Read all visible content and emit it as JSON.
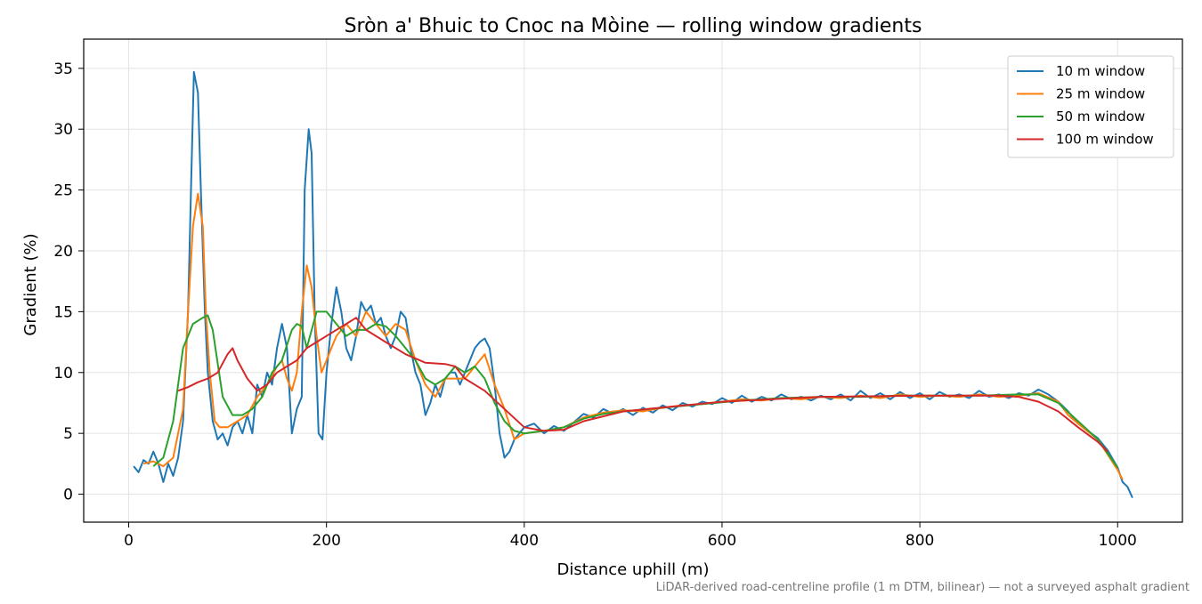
{
  "chart_data": {
    "type": "line",
    "title": "Sròn a' Bhuic to Cnoc na Mòine — rolling window gradients",
    "x_label": "Distance uphill (m)",
    "y_label": "Gradient (%)",
    "note": "LiDAR-derived road-centreline profile (1 m DTM, bilinear) — not a surveyed asphalt gradient",
    "xlim": [
      -45.5,
      1065.5
    ],
    "ylim": [
      -2.3,
      37.4
    ],
    "xticks": [
      0,
      200,
      400,
      600,
      800,
      1000
    ],
    "yticks": [
      0,
      5,
      10,
      15,
      20,
      25,
      30,
      35
    ],
    "grid": true,
    "legend": "upper right",
    "series": [
      {
        "name": "10 m window",
        "color": "#1f77b4",
        "x": [
          5,
          10,
          15,
          20,
          25,
          30,
          35,
          40,
          45,
          50,
          55,
          60,
          63,
          66,
          70,
          73,
          77,
          80,
          85,
          90,
          95,
          100,
          105,
          110,
          115,
          120,
          125,
          130,
          135,
          140,
          145,
          150,
          155,
          160,
          165,
          170,
          175,
          178,
          182,
          185,
          188,
          192,
          196,
          200,
          205,
          210,
          215,
          220,
          225,
          230,
          235,
          240,
          245,
          250,
          255,
          260,
          265,
          270,
          275,
          280,
          285,
          290,
          295,
          300,
          305,
          310,
          315,
          320,
          325,
          330,
          335,
          340,
          345,
          350,
          355,
          360,
          365,
          370,
          375,
          380,
          385,
          390,
          395,
          400,
          410,
          420,
          430,
          440,
          450,
          460,
          470,
          480,
          490,
          500,
          510,
          520,
          530,
          540,
          550,
          560,
          570,
          580,
          590,
          600,
          610,
          620,
          630,
          640,
          650,
          660,
          670,
          680,
          690,
          700,
          710,
          720,
          730,
          740,
          750,
          760,
          770,
          780,
          790,
          800,
          810,
          820,
          830,
          840,
          850,
          860,
          870,
          880,
          890,
          900,
          910,
          920,
          930,
          940,
          950,
          960,
          970,
          980,
          990,
          1000,
          1005,
          1010,
          1015
        ],
        "values": [
          2.3,
          1.8,
          2.8,
          2.5,
          3.5,
          2.5,
          1.0,
          2.5,
          1.5,
          3.0,
          6,
          15,
          25,
          34.7,
          33,
          25,
          15,
          10,
          6,
          4.5,
          5,
          4,
          5.5,
          6,
          5,
          6.5,
          5,
          9,
          8,
          10,
          9,
          12,
          14,
          12,
          5,
          7,
          8,
          25,
          30,
          28,
          15,
          5,
          4.5,
          10,
          14,
          17,
          15,
          12,
          11,
          13,
          15.8,
          15,
          15.5,
          14,
          14.5,
          13,
          12,
          13,
          15,
          14.5,
          12,
          10,
          9,
          6.5,
          7.5,
          9,
          8,
          9.5,
          10,
          10,
          9,
          10,
          11,
          12,
          12.5,
          12.8,
          12,
          9,
          5,
          3,
          3.5,
          4.5,
          5,
          5.5,
          5.8,
          5.0,
          5.6,
          5.2,
          5.9,
          6.6,
          6.3,
          7.0,
          6.6,
          7.0,
          6.5,
          7.1,
          6.7,
          7.3,
          6.9,
          7.5,
          7.2,
          7.6,
          7.4,
          7.9,
          7.5,
          8.1,
          7.6,
          8.0,
          7.7,
          8.2,
          7.8,
          8.0,
          7.7,
          8.1,
          7.8,
          8.2,
          7.7,
          8.5,
          7.9,
          8.3,
          7.8,
          8.4,
          7.9,
          8.3,
          7.8,
          8.4,
          8.0,
          8.2,
          7.9,
          8.5,
          8.0,
          8.2,
          7.9,
          8.3,
          8.1,
          8.6,
          8.2,
          7.6,
          6.8,
          5.8,
          5.2,
          4.6,
          3.6,
          2.2,
          1.0,
          0.6,
          -0.3
        ]
      },
      {
        "name": "25 m window",
        "color": "#ff7f0e",
        "x": [
          15,
          25,
          35,
          45,
          55,
          60,
          65,
          70,
          75,
          78,
          82,
          87,
          92,
          100,
          110,
          120,
          130,
          140,
          150,
          155,
          160,
          165,
          170,
          175,
          180,
          185,
          190,
          195,
          200,
          205,
          210,
          220,
          230,
          240,
          250,
          260,
          270,
          280,
          290,
          300,
          310,
          320,
          330,
          340,
          350,
          360,
          370,
          380,
          390,
          400,
          420,
          440,
          460,
          480,
          500,
          520,
          540,
          560,
          580,
          600,
          620,
          640,
          660,
          680,
          700,
          720,
          740,
          760,
          780,
          800,
          820,
          840,
          860,
          880,
          900,
          920,
          940,
          950,
          960,
          980,
          1000,
          1005
        ],
        "values": [
          2.5,
          2.7,
          2.3,
          3,
          7,
          15,
          22,
          24.7,
          22,
          15,
          10,
          6,
          5.5,
          5.5,
          6,
          6.5,
          8,
          9,
          10.5,
          11,
          9.5,
          8.5,
          10,
          15,
          18.8,
          17,
          13,
          10,
          11,
          12,
          13,
          14,
          13,
          15,
          14,
          13,
          14,
          13.5,
          11,
          9,
          8,
          9.5,
          9.5,
          9.5,
          10.5,
          11.5,
          9,
          7,
          4.5,
          5,
          5.2,
          5.5,
          6.3,
          6.7,
          6.9,
          6.8,
          7.1,
          7.3,
          7.4,
          7.6,
          7.8,
          7.7,
          7.9,
          7.8,
          8.0,
          7.9,
          8.1,
          7.9,
          8.2,
          8.0,
          8.1,
          8.0,
          8.2,
          8.0,
          8.1,
          8.3,
          7.6,
          6.5,
          5.8,
          4.5,
          2,
          1.2
        ]
      },
      {
        "name": "50 m window",
        "color": "#2ca02c",
        "x": [
          25,
          35,
          45,
          55,
          65,
          75,
          80,
          85,
          95,
          105,
          115,
          125,
          135,
          145,
          155,
          165,
          170,
          175,
          180,
          190,
          200,
          210,
          220,
          230,
          240,
          250,
          260,
          270,
          280,
          290,
          300,
          310,
          320,
          330,
          340,
          350,
          360,
          370,
          380,
          390,
          400,
          420,
          440,
          460,
          480,
          500,
          540,
          580,
          620,
          660,
          700,
          740,
          780,
          820,
          860,
          900,
          920,
          940,
          960,
          980,
          1000
        ],
        "values": [
          2.3,
          3,
          6,
          12,
          14,
          14.5,
          14.7,
          13.5,
          8,
          6.5,
          6.5,
          7,
          8,
          10,
          11,
          13.5,
          14,
          13.8,
          12,
          15,
          15,
          14,
          13,
          13.5,
          13.5,
          14,
          13.8,
          13,
          12,
          11,
          9.5,
          9,
          9.5,
          10.5,
          10,
          10.5,
          9.5,
          7.5,
          6,
          5.2,
          5,
          5.2,
          5.5,
          6.2,
          6.6,
          6.8,
          7.1,
          7.4,
          7.7,
          7.9,
          8.0,
          8.0,
          8.1,
          8.1,
          8.1,
          8.2,
          8.2,
          7.5,
          6,
          4.5,
          2.2
        ]
      },
      {
        "name": "100 m window",
        "color": "#d62728",
        "x": [
          50,
          60,
          70,
          80,
          90,
          100,
          105,
          110,
          120,
          130,
          140,
          150,
          160,
          170,
          180,
          200,
          220,
          230,
          240,
          260,
          280,
          300,
          320,
          330,
          340,
          360,
          380,
          400,
          420,
          440,
          460,
          500,
          600,
          700,
          800,
          880,
          900,
          920,
          940,
          960,
          980,
          990
        ],
        "values": [
          8.5,
          8.8,
          9.2,
          9.5,
          10,
          11.5,
          12,
          11,
          9.5,
          8.5,
          9,
          10,
          10.5,
          11,
          12,
          13,
          14,
          14.5,
          13.5,
          12.5,
          11.5,
          10.8,
          10.7,
          10.5,
          9.5,
          8.5,
          7,
          5.5,
          5.2,
          5.3,
          6,
          6.8,
          7.6,
          8,
          8.1,
          8.1,
          8,
          7.6,
          6.8,
          5.5,
          4.3,
          3.5
        ]
      }
    ]
  }
}
